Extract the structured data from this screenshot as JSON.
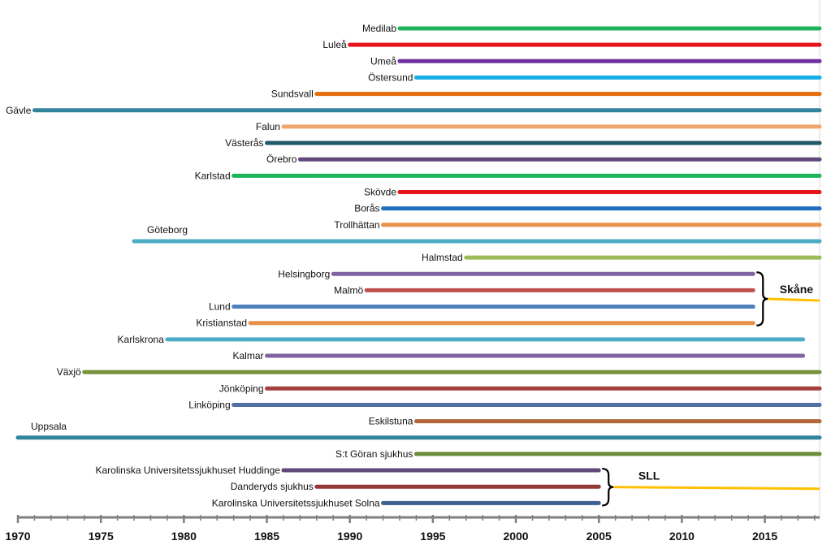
{
  "chart_data": {
    "type": "timeline",
    "title": "",
    "xlabel": "",
    "ylabel": "",
    "xlim": [
      1970,
      2018.3
    ],
    "ticks": [
      1970,
      1975,
      1980,
      1985,
      1990,
      1995,
      2000,
      2005,
      2010,
      2015
    ],
    "series": [
      {
        "name": "Medilab",
        "start": 1993,
        "end": 2018.3,
        "color": "#1db45a",
        "label_pos": "left"
      },
      {
        "name": "Luleå",
        "start": 1990,
        "end": 2018.3,
        "color": "#e8141b",
        "label_pos": "left"
      },
      {
        "name": "Umeå",
        "start": 1993,
        "end": 2018.3,
        "color": "#7030a0",
        "label_pos": "left"
      },
      {
        "name": "Östersund",
        "start": 1994,
        "end": 2018.3,
        "color": "#17b0e6",
        "label_pos": "left"
      },
      {
        "name": "Sundsvall",
        "start": 1988,
        "end": 2018.3,
        "color": "#e46c0a",
        "label_pos": "left"
      },
      {
        "name": "Gävle",
        "start": 1971,
        "end": 2018.3,
        "color": "#31849b",
        "label_pos": "left"
      },
      {
        "name": "Falun",
        "start": 1986,
        "end": 2018.3,
        "color": "#f2a66f",
        "label_pos": "left"
      },
      {
        "name": "Västerås",
        "start": 1985,
        "end": 2018.3,
        "color": "#215968",
        "label_pos": "left"
      },
      {
        "name": "Örebro",
        "start": 1987,
        "end": 2018.3,
        "color": "#604a7b",
        "label_pos": "left"
      },
      {
        "name": "Karlstad",
        "start": 1983,
        "end": 2018.3,
        "color": "#1db45a",
        "label_pos": "left"
      },
      {
        "name": "Skövde",
        "start": 1993,
        "end": 2018.3,
        "color": "#e8141b",
        "label_pos": "left"
      },
      {
        "name": "Borås",
        "start": 1992,
        "end": 2018.3,
        "color": "#1f6fc0",
        "label_pos": "left"
      },
      {
        "name": "Trollhättan",
        "start": 1992,
        "end": 2018.3,
        "color": "#e8914a",
        "label_pos": "left"
      },
      {
        "name": "Göteborg",
        "start": 1977,
        "end": 2018.3,
        "color": "#4bacc6",
        "label_pos": "above"
      },
      {
        "name": "Halmstad",
        "start": 1997,
        "end": 2018.3,
        "color": "#9bbb59",
        "label_pos": "left"
      },
      {
        "name": "Helsingborg",
        "start": 1989,
        "end": 2014.3,
        "color": "#8064a2",
        "label_pos": "left"
      },
      {
        "name": "Malmö",
        "start": 1991,
        "end": 2014.3,
        "color": "#c0504d",
        "label_pos": "left"
      },
      {
        "name": "Lund",
        "start": 1983,
        "end": 2014.3,
        "color": "#4f81bd",
        "label_pos": "left"
      },
      {
        "name": "Kristianstad",
        "start": 1984,
        "end": 2014.3,
        "color": "#e8914a",
        "label_pos": "left"
      },
      {
        "name": "Karlskrona",
        "start": 1979,
        "end": 2017.3,
        "color": "#4bacc6",
        "label_pos": "left"
      },
      {
        "name": "Kalmar",
        "start": 1985,
        "end": 2017.3,
        "color": "#8064a2",
        "label_pos": "left"
      },
      {
        "name": "Växjö",
        "start": 1974,
        "end": 2018.3,
        "color": "#76923c",
        "label_pos": "left"
      },
      {
        "name": "Jönköping",
        "start": 1985,
        "end": 2018.3,
        "color": "#a5403e",
        "label_pos": "left"
      },
      {
        "name": "Linköping",
        "start": 1983,
        "end": 2018.3,
        "color": "#4f6fa5",
        "label_pos": "left"
      },
      {
        "name": "Eskilstuna",
        "start": 1994,
        "end": 2018.3,
        "color": "#b0683a",
        "label_pos": "left"
      },
      {
        "name": "Uppsala",
        "start": 1970,
        "end": 2018.3,
        "color": "#31849b",
        "label_pos": "above"
      },
      {
        "name": "S:t Göran sjukhus",
        "start": 1994,
        "end": 2018.3,
        "color": "#6b8e3a",
        "label_pos": "left"
      },
      {
        "name": "Karolinska Universitetssjukhuset Huddinge",
        "start": 1986,
        "end": 2005,
        "color": "#5f4b7a",
        "label_pos": "left"
      },
      {
        "name": "Danderyds sjukhus",
        "start": 1988,
        "end": 2005,
        "color": "#953735",
        "label_pos": "left"
      },
      {
        "name": "Karolinska Universitetssjukhuset Solna",
        "start": 1992,
        "end": 2005,
        "color": "#3f5f8f",
        "label_pos": "left"
      }
    ],
    "groups": [
      {
        "name": "Skåne",
        "members": [
          "Helsingborg",
          "Malmö",
          "Lund",
          "Kristianstad"
        ],
        "continue_from": 2015.5,
        "continue_to": 2018.3,
        "color": "#ffc000"
      },
      {
        "name": "SLL",
        "members": [
          "Karolinska Universitetssjukhuset Huddinge",
          "Danderyds sjukhus",
          "Karolinska Universitetssjukhuset Solna"
        ],
        "continue_from": 2006.4,
        "continue_to": 2018.3,
        "color": "#ffc000"
      }
    ]
  }
}
